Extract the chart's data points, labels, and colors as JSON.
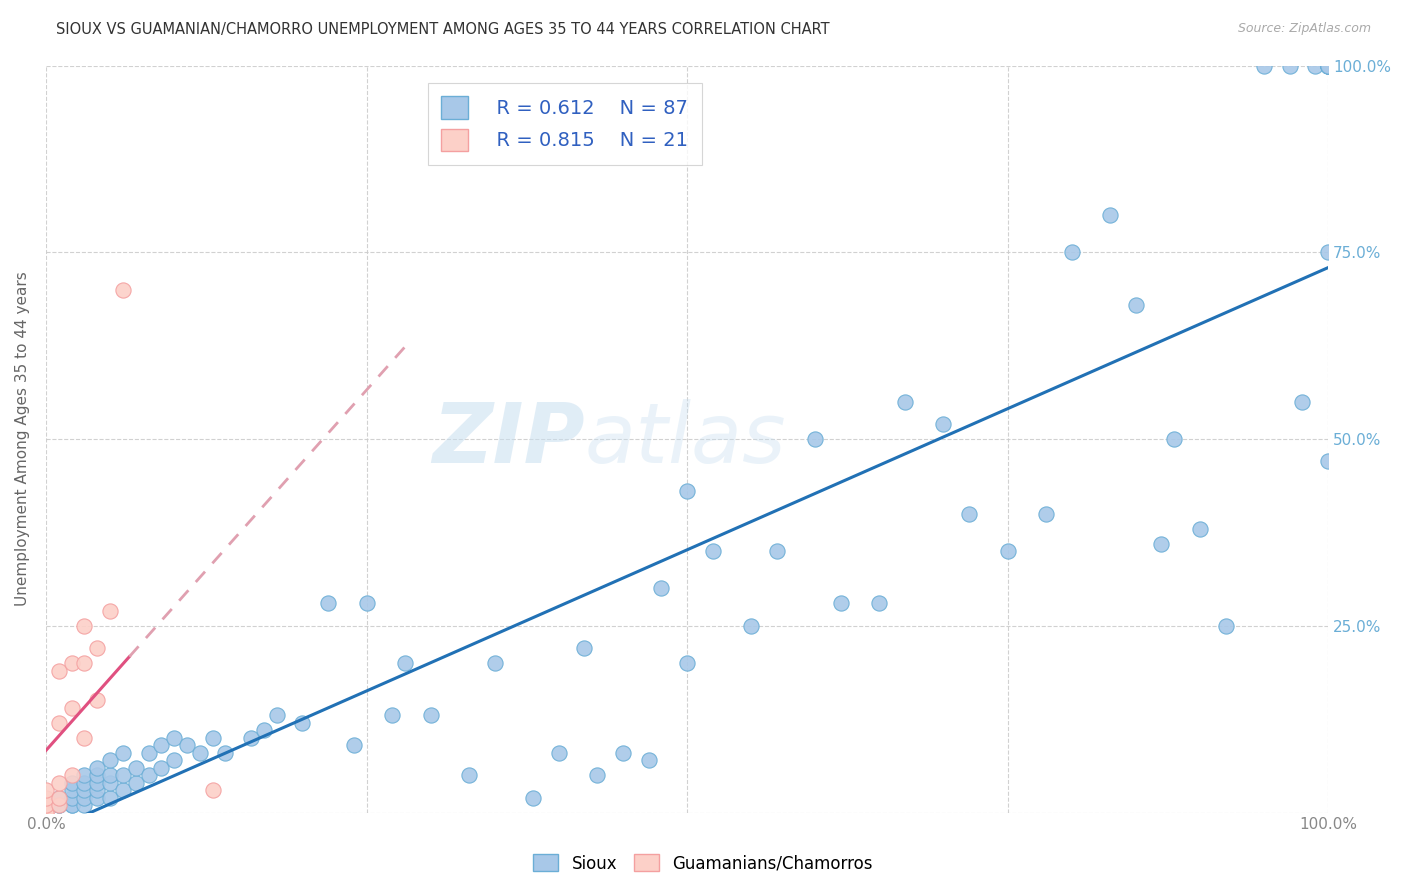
{
  "title": "SIOUX VS GUAMANIAN/CHAMORRO UNEMPLOYMENT AMONG AGES 35 TO 44 YEARS CORRELATION CHART",
  "source": "Source: ZipAtlas.com",
  "ylabel": "Unemployment Among Ages 35 to 44 years",
  "xlim": [
    0,
    1.0
  ],
  "ylim": [
    0,
    1.0
  ],
  "x_tick_labels": [
    "0.0%",
    "",
    "",
    "",
    "100.0%"
  ],
  "x_tick_vals": [
    0.0,
    0.25,
    0.5,
    0.75,
    1.0
  ],
  "y_tick_labels_right": [
    "100.0%",
    "75.0%",
    "50.0%",
    "25.0%",
    ""
  ],
  "y_tick_vals": [
    1.0,
    0.75,
    0.5,
    0.25,
    0.0
  ],
  "sioux_R": "0.612",
  "sioux_N": "87",
  "guam_R": "0.815",
  "guam_N": "21",
  "sioux_color": "#a8c8e8",
  "sioux_edge_color": "#6baed6",
  "guam_color": "#fcd0c8",
  "guam_edge_color": "#f4a0a0",
  "sioux_line_color": "#2171b5",
  "guam_line_color": "#e05080",
  "guam_line_dash_color": "#e0a0b0",
  "right_axis_color": "#6baed6",
  "legend_R_N_color": "#3060c0",
  "watermark_zip": "ZIP",
  "watermark_atlas": "atlas",
  "sioux_x": [
    0.01,
    0.01,
    0.01,
    0.02,
    0.02,
    0.02,
    0.02,
    0.02,
    0.03,
    0.03,
    0.03,
    0.03,
    0.03,
    0.04,
    0.04,
    0.04,
    0.04,
    0.04,
    0.05,
    0.05,
    0.05,
    0.05,
    0.06,
    0.06,
    0.06,
    0.07,
    0.07,
    0.08,
    0.08,
    0.09,
    0.09,
    0.1,
    0.1,
    0.11,
    0.12,
    0.13,
    0.14,
    0.16,
    0.17,
    0.18,
    0.2,
    0.22,
    0.24,
    0.25,
    0.27,
    0.28,
    0.3,
    0.33,
    0.35,
    0.38,
    0.4,
    0.42,
    0.43,
    0.45,
    0.47,
    0.48,
    0.5,
    0.5,
    0.52,
    0.55,
    0.57,
    0.6,
    0.62,
    0.65,
    0.67,
    0.7,
    0.72,
    0.75,
    0.78,
    0.8,
    0.83,
    0.85,
    0.87,
    0.88,
    0.9,
    0.92,
    0.95,
    0.97,
    0.98,
    0.99,
    1.0,
    1.0,
    1.0,
    1.0,
    1.0,
    1.0,
    1.0
  ],
  "sioux_y": [
    0.01,
    0.01,
    0.02,
    0.01,
    0.01,
    0.02,
    0.03,
    0.04,
    0.01,
    0.02,
    0.03,
    0.04,
    0.05,
    0.02,
    0.03,
    0.04,
    0.05,
    0.06,
    0.02,
    0.04,
    0.05,
    0.07,
    0.03,
    0.05,
    0.08,
    0.04,
    0.06,
    0.05,
    0.08,
    0.06,
    0.09,
    0.07,
    0.1,
    0.09,
    0.08,
    0.1,
    0.08,
    0.1,
    0.11,
    0.13,
    0.12,
    0.28,
    0.09,
    0.28,
    0.13,
    0.2,
    0.13,
    0.05,
    0.2,
    0.02,
    0.08,
    0.22,
    0.05,
    0.08,
    0.07,
    0.3,
    0.2,
    0.43,
    0.35,
    0.25,
    0.35,
    0.5,
    0.28,
    0.28,
    0.55,
    0.52,
    0.4,
    0.35,
    0.4,
    0.75,
    0.8,
    0.68,
    0.36,
    0.5,
    0.38,
    0.25,
    1.0,
    1.0,
    0.55,
    1.0,
    0.47,
    0.75,
    1.0,
    1.0,
    1.0,
    1.0,
    1.0
  ],
  "guam_x": [
    0.0,
    0.0,
    0.0,
    0.0,
    0.0,
    0.01,
    0.01,
    0.01,
    0.01,
    0.01,
    0.02,
    0.02,
    0.02,
    0.03,
    0.03,
    0.03,
    0.04,
    0.04,
    0.05,
    0.06,
    0.13
  ],
  "guam_y": [
    0.0,
    0.0,
    0.01,
    0.02,
    0.03,
    0.01,
    0.02,
    0.04,
    0.12,
    0.19,
    0.05,
    0.14,
    0.2,
    0.1,
    0.2,
    0.25,
    0.15,
    0.22,
    0.27,
    0.7,
    0.03
  ]
}
